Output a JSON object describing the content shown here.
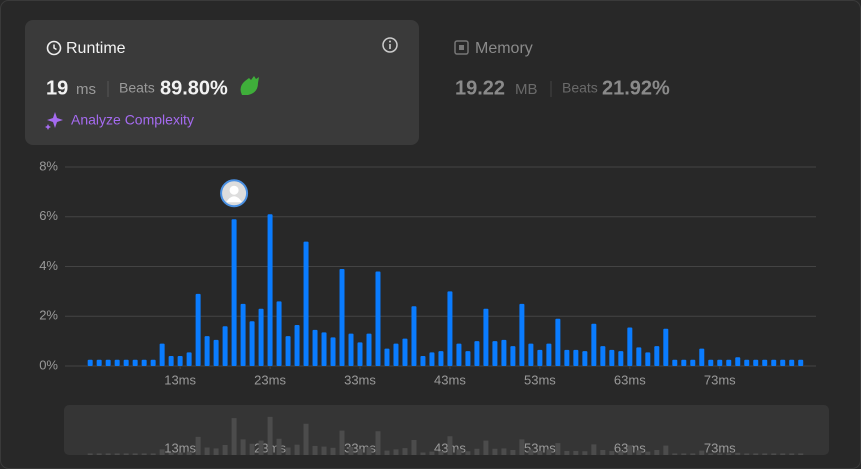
{
  "runtime": {
    "title": "Runtime",
    "value": "19",
    "unit": "ms",
    "beats_label": "Beats",
    "beats": "89.80%",
    "action": "Analyze Complexity"
  },
  "memory": {
    "title": "Memory",
    "value": "19.22",
    "unit": "MB",
    "beats_label": "Beats",
    "beats": "21.92%"
  },
  "chart_data": {
    "type": "bar",
    "color": "#0a7cff",
    "grid": true,
    "x": [
      3,
      4,
      5,
      6,
      7,
      8,
      9,
      10,
      11,
      12,
      13,
      14,
      15,
      16,
      17,
      18,
      19,
      20,
      21,
      22,
      23,
      24,
      25,
      26,
      27,
      28,
      29,
      30,
      31,
      32,
      33,
      34,
      35,
      36,
      37,
      38,
      39,
      40,
      41,
      42,
      43,
      44,
      45,
      46,
      47,
      48,
      49,
      50,
      51,
      52,
      53,
      54,
      55,
      56,
      57,
      58,
      59,
      60,
      61,
      62,
      63,
      64,
      65,
      66,
      67,
      68,
      69,
      70,
      71,
      72,
      73,
      74,
      75,
      76,
      77,
      78,
      79,
      80,
      81,
      82
    ],
    "values": [
      0.25,
      0.25,
      0.25,
      0.25,
      0.25,
      0.25,
      0.25,
      0.25,
      0.9,
      0.4,
      0.4,
      0.55,
      2.9,
      1.2,
      1.05,
      1.6,
      5.9,
      2.5,
      1.8,
      2.3,
      6.1,
      2.6,
      1.2,
      1.65,
      5.0,
      1.45,
      1.35,
      1.15,
      3.9,
      1.3,
      0.95,
      1.3,
      3.8,
      0.7,
      0.9,
      1.1,
      2.4,
      0.4,
      0.55,
      0.6,
      3.0,
      0.9,
      0.6,
      1.0,
      2.3,
      1.0,
      1.05,
      0.8,
      2.5,
      0.9,
      0.65,
      0.9,
      1.9,
      0.65,
      0.65,
      0.6,
      1.7,
      0.8,
      0.65,
      0.6,
      1.55,
      0.75,
      0.55,
      0.8,
      1.5,
      0.25,
      0.25,
      0.25,
      0.7,
      0.25,
      0.25,
      0.25,
      0.35,
      0.25,
      0.25,
      0.25,
      0.25,
      0.25,
      0.25,
      0.25
    ],
    "xlim": [
      0.2,
      83.7
    ],
    "xticks": [
      {
        "value": 13,
        "label": "13ms"
      },
      {
        "value": 23,
        "label": "23ms"
      },
      {
        "value": 33,
        "label": "33ms"
      },
      {
        "value": 43,
        "label": "43ms"
      },
      {
        "value": 53,
        "label": "53ms"
      },
      {
        "value": 63,
        "label": "63ms"
      },
      {
        "value": 73,
        "label": "73ms"
      }
    ],
    "ylim": [
      0,
      8
    ],
    "yticks": [
      {
        "value": 0,
        "label": "0%"
      },
      {
        "value": 2,
        "label": "2%"
      },
      {
        "value": 4,
        "label": "4%"
      },
      {
        "value": 6,
        "label": "6%"
      },
      {
        "value": 8,
        "label": "8%"
      }
    ]
  }
}
